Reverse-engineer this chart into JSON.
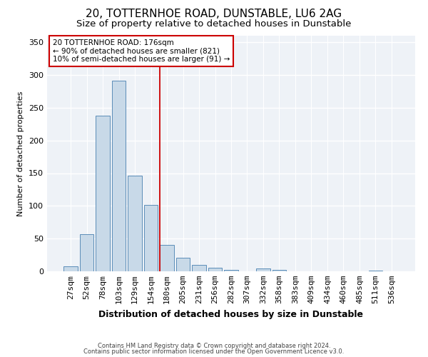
{
  "title1": "20, TOTTERNHOE ROAD, DUNSTABLE, LU6 2AG",
  "title2": "Size of property relative to detached houses in Dunstable",
  "xlabel": "Distribution of detached houses by size in Dunstable",
  "ylabel": "Number of detached properties",
  "categories": [
    "27sqm",
    "52sqm",
    "78sqm",
    "103sqm",
    "129sqm",
    "154sqm",
    "180sqm",
    "205sqm",
    "231sqm",
    "256sqm",
    "282sqm",
    "307sqm",
    "332sqm",
    "358sqm",
    "383sqm",
    "409sqm",
    "434sqm",
    "460sqm",
    "485sqm",
    "511sqm",
    "536sqm"
  ],
  "values": [
    8,
    57,
    238,
    291,
    146,
    101,
    40,
    21,
    10,
    6,
    2,
    0,
    4,
    2,
    0,
    0,
    0,
    0,
    0,
    1,
    0
  ],
  "bar_color": "#c8d9e8",
  "bar_edge_color": "#5b8db8",
  "vline_idx": 6,
  "vline_color": "#cc0000",
  "annotation_text": "20 TOTTERNHOE ROAD: 176sqm\n← 90% of detached houses are smaller (821)\n10% of semi-detached houses are larger (91) →",
  "annotation_box_color": "#cc0000",
  "ylim": [
    0,
    360
  ],
  "yticks": [
    0,
    50,
    100,
    150,
    200,
    250,
    300,
    350
  ],
  "footer1": "Contains HM Land Registry data © Crown copyright and database right 2024.",
  "footer2": "Contains public sector information licensed under the Open Government Licence v3.0.",
  "bg_color": "#eef2f7",
  "title1_fontsize": 11,
  "title2_fontsize": 9.5,
  "xlabel_fontsize": 9,
  "ylabel_fontsize": 8,
  "tick_fontsize": 8,
  "footer_fontsize": 6
}
